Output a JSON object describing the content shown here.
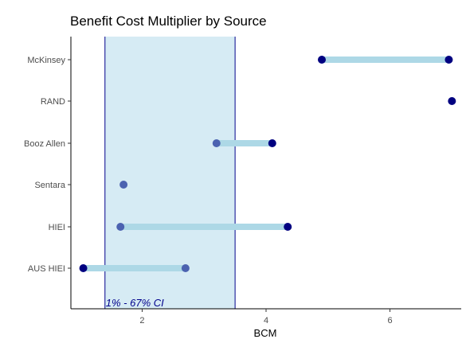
{
  "chart_data": {
    "type": "dumbbell",
    "title": "Benefit Cost Multiplier by Source",
    "xlabel": "BCM",
    "ylabel": "",
    "xlim": [
      0.85,
      7.15
    ],
    "xticks": [
      2,
      4,
      6
    ],
    "grid": false,
    "legend": "none",
    "categories": [
      "McKinsey",
      "RAND",
      "Booz Allen",
      "Sentara",
      "HIEI",
      "AUS HIEI"
    ],
    "ranges": [
      {
        "source": "McKinsey",
        "low": 4.9,
        "high": 6.95
      },
      {
        "source": "RAND",
        "low": 7.0,
        "high": 7.0
      },
      {
        "source": "Booz Allen",
        "low": 3.2,
        "high": 4.1
      },
      {
        "source": "Sentara",
        "low": 1.7,
        "high": 1.7
      },
      {
        "source": "HIEI",
        "low": 1.65,
        "high": 4.35
      },
      {
        "source": "AUS HIEI",
        "low": 1.05,
        "high": 2.7
      }
    ],
    "points": [
      {
        "source": "McKinsey",
        "x": 4.9,
        "shade": "dark"
      },
      {
        "source": "McKinsey",
        "x": 6.95,
        "shade": "dark"
      },
      {
        "source": "RAND",
        "x": 7.0,
        "shade": "dark"
      },
      {
        "source": "Booz Allen",
        "x": 3.2,
        "shade": "medium"
      },
      {
        "source": "Booz Allen",
        "x": 4.1,
        "shade": "dark"
      },
      {
        "source": "Sentara",
        "x": 1.7,
        "shade": "medium"
      },
      {
        "source": "HIEI",
        "x": 1.65,
        "shade": "medium"
      },
      {
        "source": "HIEI",
        "x": 4.35,
        "shade": "dark"
      },
      {
        "source": "AUS HIEI",
        "x": 1.05,
        "shade": "dark"
      },
      {
        "source": "AUS HIEI",
        "x": 2.7,
        "shade": "medium"
      }
    ],
    "ci_band": {
      "low": 1.4,
      "high": 3.5,
      "label": "1% - 67% CI"
    },
    "colors": {
      "dark": "#000080",
      "medium": "#4b62b0",
      "range": "#add8e6",
      "band_fill": "#d6ebf4",
      "band_line": "#00008b",
      "annot": "#00008b"
    }
  }
}
